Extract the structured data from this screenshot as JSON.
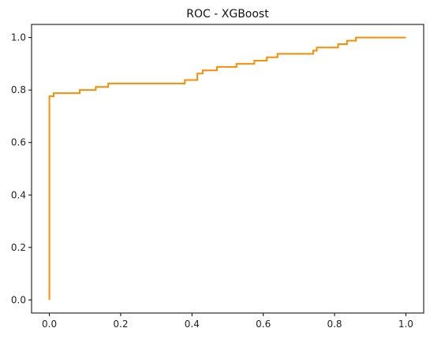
{
  "chart_data": {
    "type": "line",
    "title": "ROC - XGBoost",
    "xlabel": "",
    "ylabel": "",
    "xlim": [
      -0.05,
      1.05
    ],
    "ylim": [
      -0.05,
      1.05
    ],
    "grid": false,
    "line_color": "#ff8c00",
    "x_ticks": [
      0.0,
      0.2,
      0.4,
      0.6,
      0.8,
      1.0
    ],
    "y_ticks": [
      0.0,
      0.2,
      0.4,
      0.6,
      0.8,
      1.0
    ],
    "x_tick_labels": [
      "0.0",
      "0.2",
      "0.4",
      "0.6",
      "0.8",
      "1.0"
    ],
    "y_tick_labels": [
      "0.0",
      "0.2",
      "0.4",
      "0.6",
      "0.8",
      "1.0"
    ],
    "series": [
      {
        "x": [
          0.0,
          0.0,
          0.012,
          0.012,
          0.085,
          0.085,
          0.13,
          0.13,
          0.165,
          0.165,
          0.38,
          0.38,
          0.415,
          0.415,
          0.43,
          0.43,
          0.47,
          0.47,
          0.525,
          0.525,
          0.575,
          0.575,
          0.61,
          0.61,
          0.64,
          0.64,
          0.74,
          0.74,
          0.75,
          0.75,
          0.81,
          0.81,
          0.835,
          0.835,
          0.86,
          0.86,
          1.0
        ],
        "y": [
          0.0,
          0.776,
          0.776,
          0.788,
          0.788,
          0.8,
          0.8,
          0.812,
          0.812,
          0.825,
          0.825,
          0.838,
          0.838,
          0.863,
          0.863,
          0.875,
          0.875,
          0.888,
          0.888,
          0.9,
          0.9,
          0.912,
          0.912,
          0.925,
          0.925,
          0.938,
          0.938,
          0.95,
          0.95,
          0.962,
          0.962,
          0.975,
          0.975,
          0.988,
          0.988,
          1.0,
          1.0
        ]
      }
    ]
  }
}
